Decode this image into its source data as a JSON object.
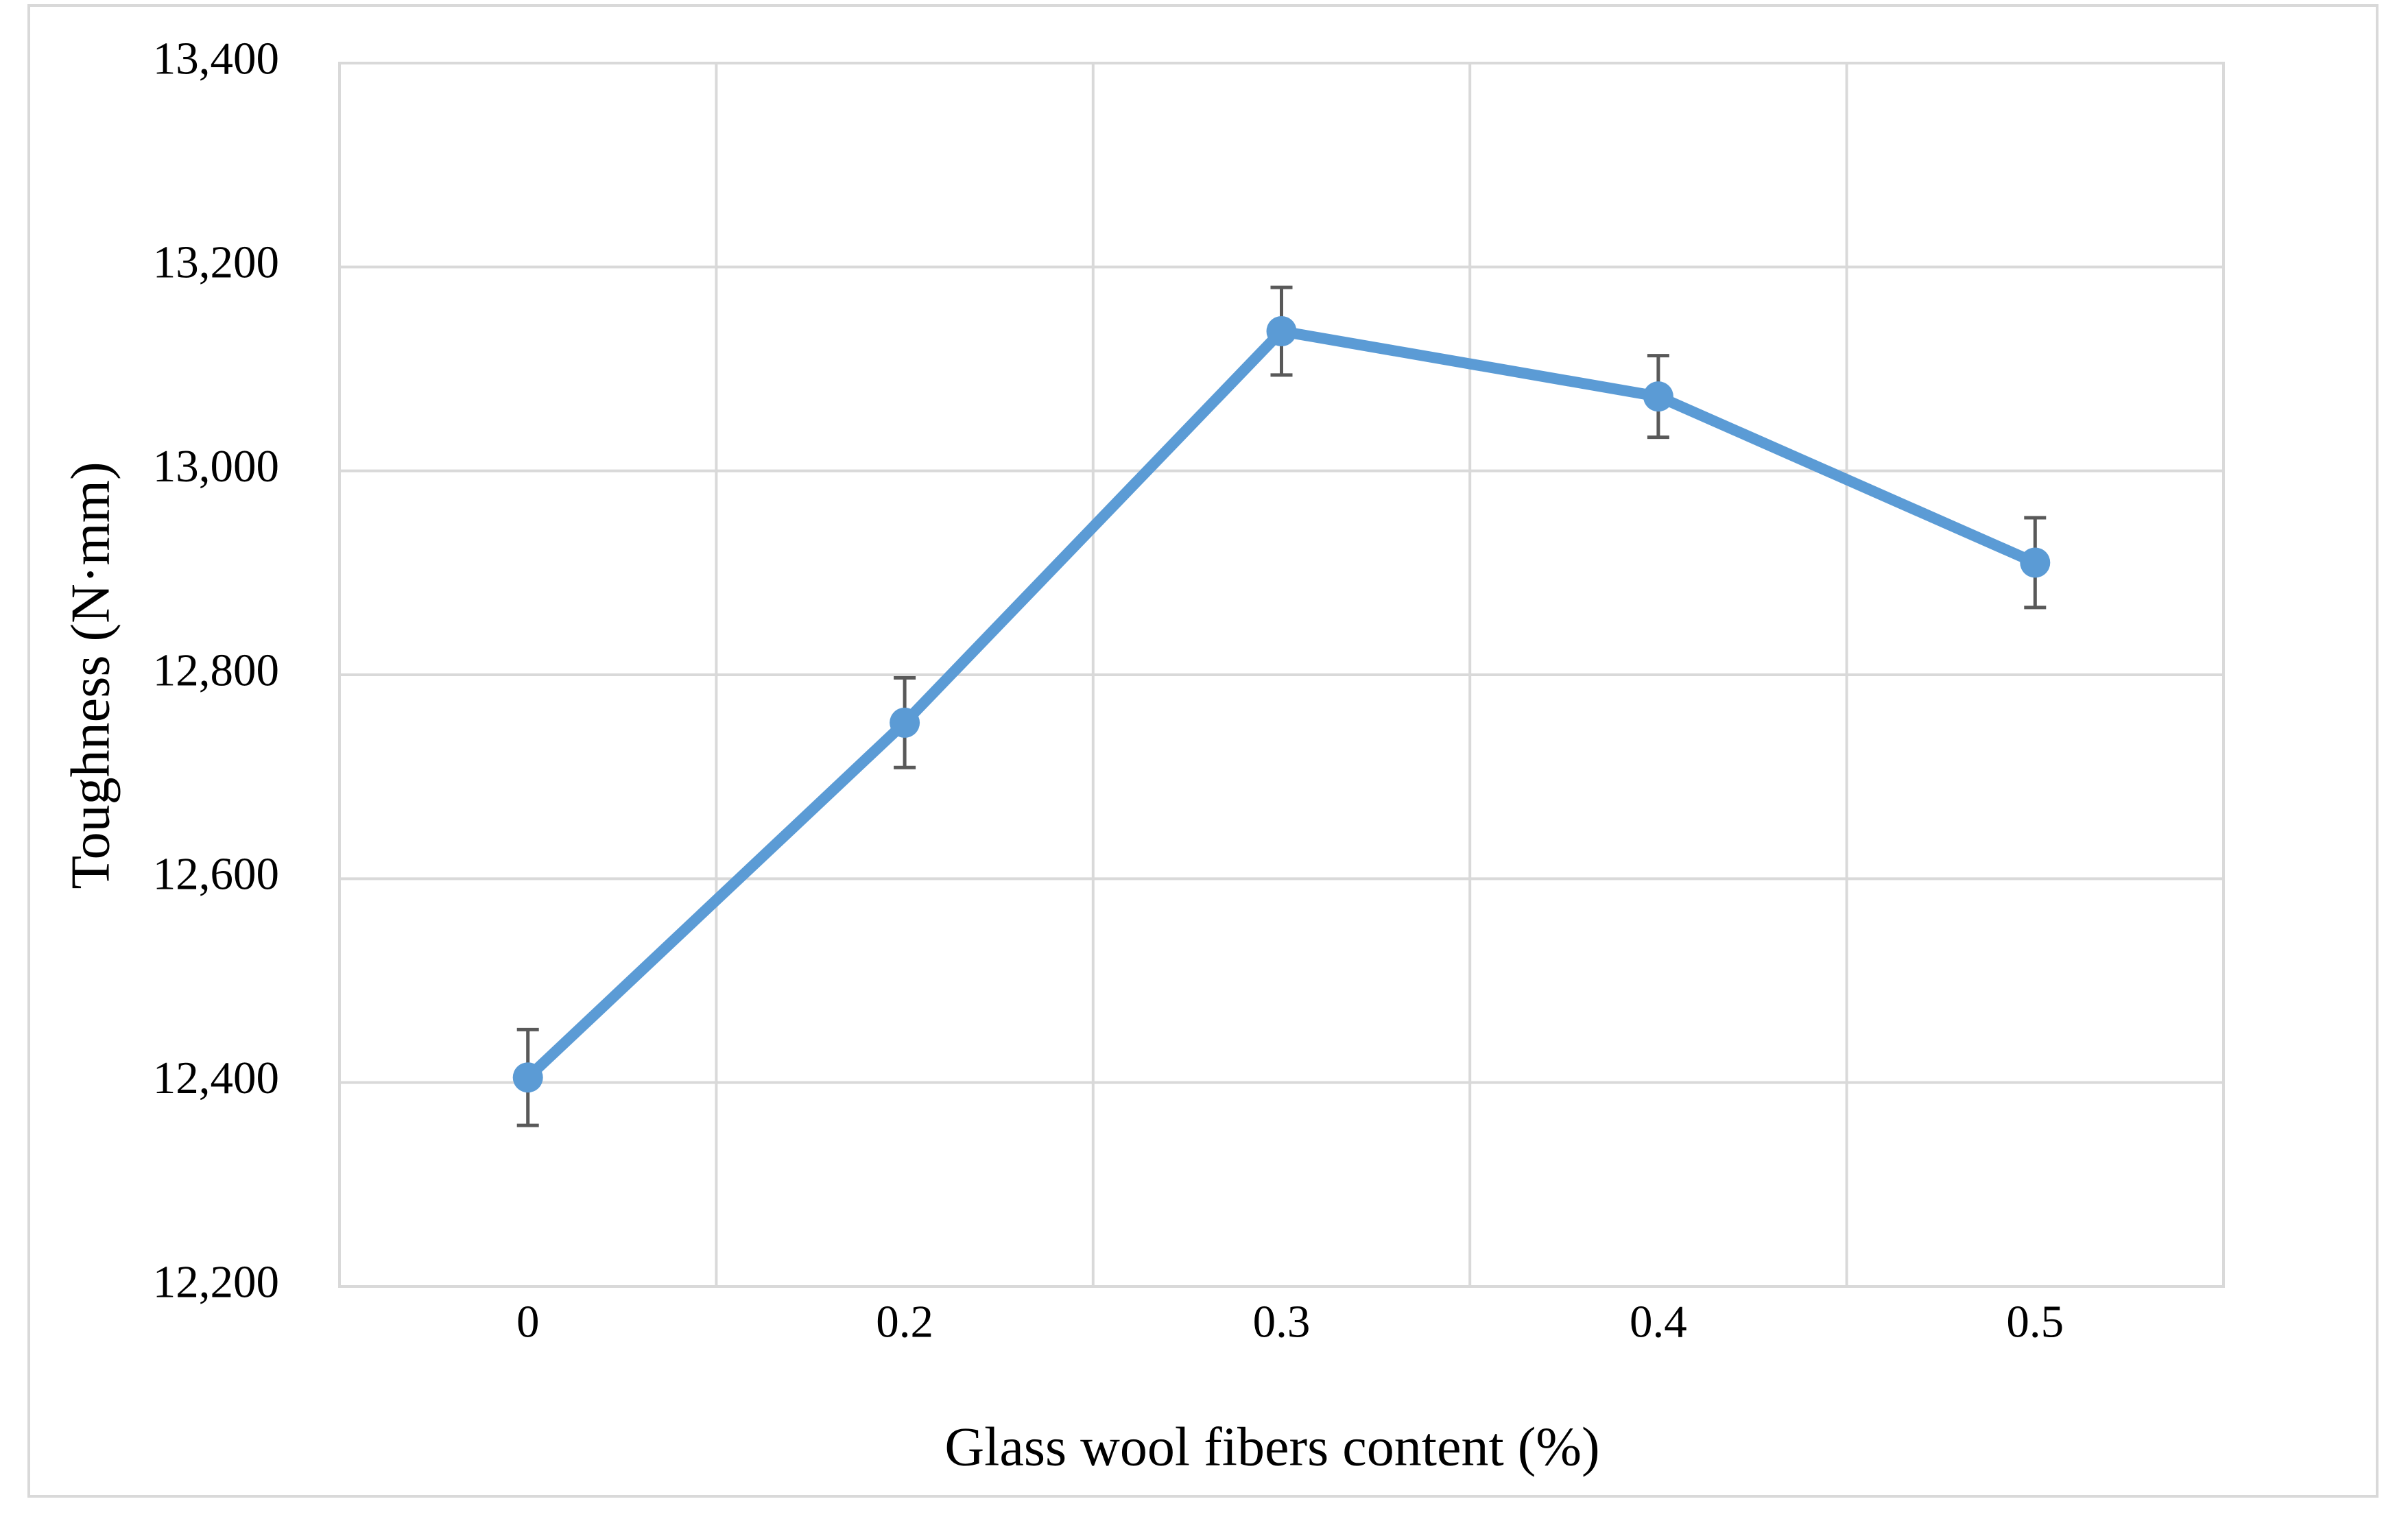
{
  "chart_data": {
    "type": "line",
    "x_label": "Glass wool fibers content (%)",
    "y_label": "Toughness (N·mm)",
    "categories": [
      "0",
      "0.2",
      "0.3",
      "0.4",
      "0.5"
    ],
    "series": [
      {
        "name": "Toughness",
        "color": "#5b9bd5",
        "error_color": "#595959",
        "values": [
          12405,
          12753,
          13137,
          13073,
          12910
        ],
        "errors": [
          47,
          44,
          43,
          40,
          44
        ]
      }
    ],
    "ylim": [
      12200,
      13400
    ],
    "yticks": [
      {
        "value": 12200,
        "label": "12,200"
      },
      {
        "value": 12400,
        "label": "12,400"
      },
      {
        "value": 12600,
        "label": "12,600"
      },
      {
        "value": 12800,
        "label": "12,800"
      },
      {
        "value": 13000,
        "label": "13,000"
      },
      {
        "value": 13200,
        "label": "13,200"
      },
      {
        "value": 13400,
        "label": "13,400"
      }
    ],
    "grid": true
  }
}
